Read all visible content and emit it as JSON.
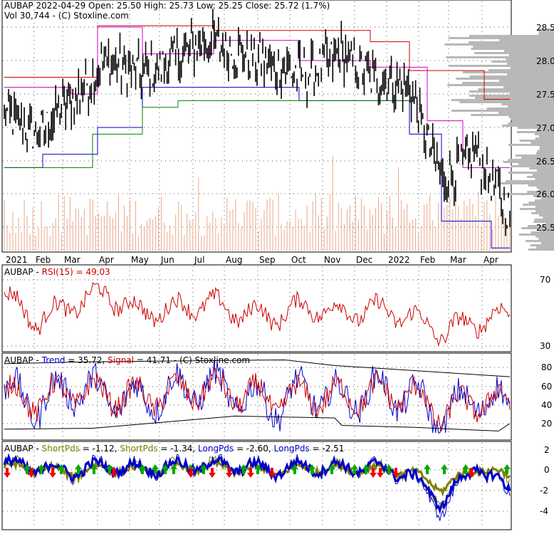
{
  "header": {
    "title": "AUBAP  2022-04-29 Open: 25.50  High: 25.73  Low: 25.25  Close: 25.72 (1.7%)",
    "volume": "Vol 30,744  - (C) Stoxline.com"
  },
  "price_panel": {
    "y_ticks": [
      "28.5",
      "28.0",
      "27.5",
      "27.0",
      "26.5",
      "26.0",
      "25.5"
    ],
    "x_ticks": [
      "2021",
      "Feb",
      "Mar",
      "Apr",
      "May",
      "Jun",
      "Jul",
      "Aug",
      "Sep",
      "Oct",
      "Nov",
      "Dec",
      "2022",
      "Feb",
      "Mar",
      "Apr"
    ]
  },
  "rsi_panel": {
    "label_prefix": "AUBAP - ",
    "label_series": "RSI(15) = 49.03",
    "y_ticks": [
      "70",
      "30"
    ]
  },
  "trend_panel": {
    "label_prefix": "AUBAP - ",
    "trend_label": "Trend",
    "trend_value": " = 35.72, ",
    "signal_label": "Signal",
    "signal_value": " = 41.71",
    "label_suffix": "  - (C) Stoxline.com",
    "y_ticks": [
      "80",
      "60",
      "40",
      "20"
    ]
  },
  "pds_panel": {
    "label_prefix": "AUBAP - ",
    "items": [
      {
        "text": "ShortPds",
        "color": "#808000"
      },
      {
        "text": " = -1.12, ",
        "color": "#000000"
      },
      {
        "text": "ShortPds",
        "color": "#808000"
      },
      {
        "text": " = -1.34, ",
        "color": "#000000"
      },
      {
        "text": "LongPds",
        "color": "#0000cc"
      },
      {
        "text": " = -2.60, ",
        "color": "#000000"
      },
      {
        "text": "LongPds",
        "color": "#0000cc"
      },
      {
        "text": " = -2.51",
        "color": "#000000"
      }
    ],
    "y_ticks": [
      "2",
      "0",
      "-2",
      "-4"
    ]
  },
  "colors": {
    "price": "#000000",
    "upper_band": "#cc0000",
    "magenta_band": "#cc00cc",
    "blue_band": "#0000cc",
    "green_band": "#008000",
    "volume": "#e9a98a",
    "volume_profile": "#b8b8b8",
    "rsi": "#cc0000",
    "trend": "#0000cc",
    "signal": "#cc0000",
    "short_pds": "#808000",
    "long_pds": "#0000cc",
    "arrow_up": "#00aa00",
    "arrow_down": "#ee0000"
  },
  "chart_data": [
    {
      "type": "line",
      "title": "AUBAP  2022-04-29 Open: 25.50  High: 25.73  Low: 25.25  Close: 25.72 (1.7%)",
      "ylim": [
        25.1,
        28.75
      ],
      "x": [
        "2021",
        "Feb",
        "Mar",
        "Apr",
        "May",
        "Jun",
        "Jul",
        "Aug",
        "Sep",
        "Oct",
        "Nov",
        "Dec",
        "2022",
        "Feb",
        "Mar",
        "Apr"
      ],
      "series": [
        {
          "name": "Close",
          "values": [
            27.2,
            26.9,
            27.4,
            28.0,
            27.8,
            28.0,
            28.3,
            28.1,
            27.9,
            27.8,
            28.1,
            27.7,
            27.6,
            26.2,
            26.6,
            25.72
          ]
        }
      ],
      "volume_max": 30744
    },
    {
      "type": "line",
      "ylim": [
        25,
        80
      ],
      "series": [
        {
          "name": "RSI(15)",
          "values": [
            60,
            45,
            55,
            62,
            50,
            52,
            56,
            50,
            48,
            54,
            50,
            52,
            48,
            38,
            45,
            49.03
          ]
        }
      ]
    },
    {
      "type": "line",
      "ylim": [
        0,
        90
      ],
      "series": [
        {
          "name": "Trend",
          "values": [
            55,
            40,
            60,
            50,
            45,
            55,
            60,
            50,
            40,
            55,
            45,
            55,
            50,
            25,
            50,
            35.72
          ]
        },
        {
          "name": "Signal",
          "values": [
            50,
            45,
            55,
            52,
            48,
            52,
            58,
            52,
            45,
            50,
            48,
            52,
            52,
            30,
            45,
            41.71
          ]
        }
      ]
    },
    {
      "type": "line",
      "ylim": [
        -5,
        2.5
      ],
      "series": [
        {
          "name": "ShortPds",
          "values": [
            0.5,
            0.2,
            -0.5,
            0.4,
            -0.2,
            0.3,
            0.5,
            0.2,
            -0.3,
            0.3,
            0.1,
            0.2,
            -0.3,
            -3.0,
            0.5,
            -1.12
          ]
        },
        {
          "name": "LongPds",
          "values": [
            0.6,
            0.3,
            -0.2,
            0.5,
            0.1,
            0.4,
            0.6,
            0.4,
            0.0,
            0.4,
            0.2,
            0.3,
            -0.5,
            -4.0,
            0.6,
            -2.6
          ]
        }
      ]
    }
  ]
}
